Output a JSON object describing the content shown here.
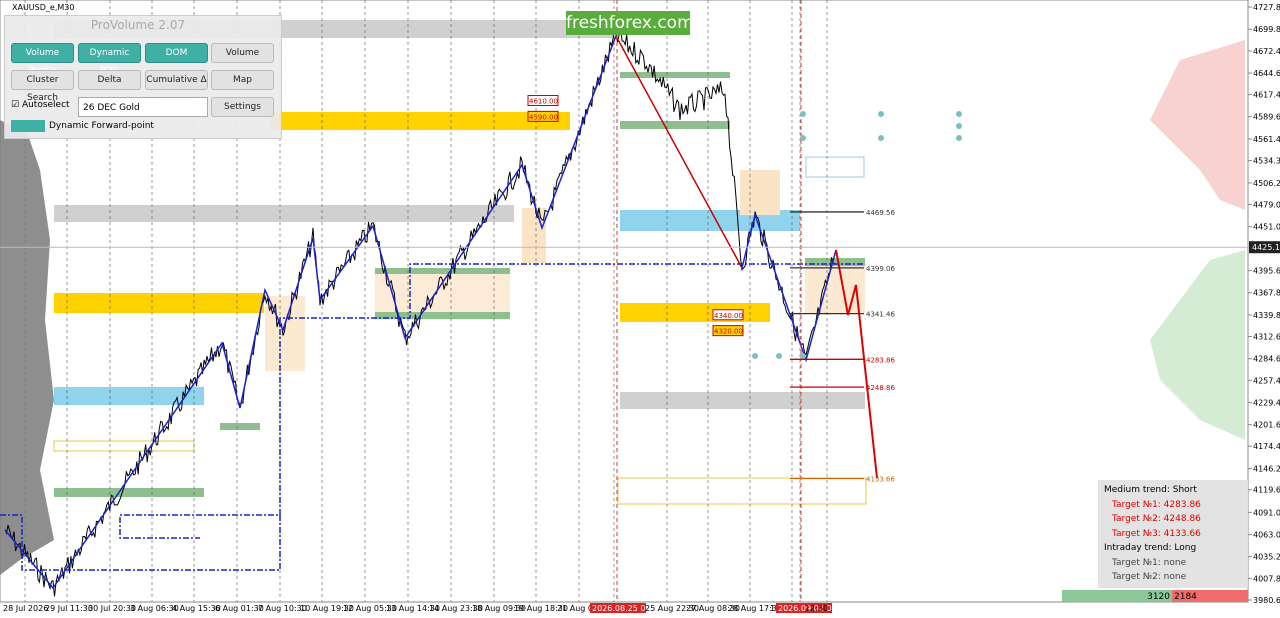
{
  "header": {
    "symbol": "XAUUSD_e,M30",
    "logo": "freshforex.com"
  },
  "panel": {
    "title": "ProVolume 2.07",
    "buttons": [
      "Volume Profile",
      "Dynamic POC",
      "DOM",
      "Volume",
      "Cluster Search",
      "Delta",
      "Cumulative Δ",
      "Map"
    ],
    "autoselect": "Autoselect",
    "instrument": "26 DEC Gold",
    "settings": "Settings",
    "forward_point": "Dynamic Forward-point"
  },
  "price_axis": {
    "ylim": [
      3980.6,
      4727.8
    ],
    "ticks": [
      {
        "value": 4727.8,
        "label": "4727.80"
      },
      {
        "value": 4699.8,
        "label": "4699.80"
      },
      {
        "value": 4672.45,
        "label": "4672.45"
      },
      {
        "value": 4644.6,
        "label": "4644.60"
      },
      {
        "value": 4617.45,
        "label": "4617.45"
      },
      {
        "value": 4589.6,
        "label": "4589.60"
      },
      {
        "value": 4561.45,
        "label": "4561.45"
      },
      {
        "value": 4534.3,
        "label": "4534.30"
      },
      {
        "value": 4506.2,
        "label": "4506.20"
      },
      {
        "value": 4479,
        "label": "4479.00"
      },
      {
        "value": 4451,
        "label": "4451.00"
      },
      {
        "value": 4395.6,
        "label": "4395.60"
      },
      {
        "value": 4367.8,
        "label": "4367.80"
      },
      {
        "value": 4339.8,
        "label": "4339.80"
      },
      {
        "value": 4312.6,
        "label": "4312.60"
      },
      {
        "value": 4284.6,
        "label": "4284.60"
      },
      {
        "value": 4257.4,
        "label": "4257.40"
      },
      {
        "value": 4229.4,
        "label": "4229.40"
      },
      {
        "value": 4201.6,
        "label": "4201.60"
      },
      {
        "value": 4174.4,
        "label": "4174.40"
      },
      {
        "value": 4146.2,
        "label": "4146.20"
      },
      {
        "value": 4119.6,
        "label": "4119.60"
      },
      {
        "value": 4091,
        "label": "4091.00"
      },
      {
        "value": 4063,
        "label": "4063.00"
      },
      {
        "value": 4035.2,
        "label": "4035.20"
      },
      {
        "value": 4007.8,
        "label": "4007.80"
      },
      {
        "value": 3980.6,
        "label": "3980.60"
      }
    ],
    "current_price": 4425.12
  },
  "time_axis": {
    "labels": [
      "28 Jul 2026",
      "29 Jul 11:30",
      "30 Jul 20:30",
      "3 Aug 06:30",
      "4 Aug 15:30",
      "6 Aug 01:30",
      "7 Aug 10:30",
      "10 Aug 19:30",
      "12 Aug 05:30",
      "13 Aug 14:30",
      "14 Aug 23:30",
      "18 Aug 09:30",
      "19 Aug 18:30",
      "21 Aug 04:30",
      "2026.08.25 03:30",
      "25 Aug 22:30",
      "27 Aug 08:30",
      "28 Aug 17:30",
      "1",
      "2026.09.02 04:30",
      "12:30"
    ]
  },
  "levels": [
    4469.56,
    4399.06,
    4341.46,
    4283.86,
    4248.86,
    4133.66
  ],
  "box_labels": [
    {
      "value": 4610,
      "label": "4610.00"
    },
    {
      "value": 4590,
      "label": "4590.00"
    },
    {
      "value": 4340,
      "label": "4340.00"
    },
    {
      "value": 4320,
      "label": "4320.00"
    }
  ],
  "trend_box": {
    "lines": [
      "Medium trend: Short",
      "Target №1: 4283.86",
      "Target №2: 4248.86",
      "Target №3: 4133.66",
      "Intraday trend: Long",
      "Target №1: none",
      "Target №2: none"
    ]
  },
  "footer": {
    "buy": "3120",
    "sell": "2184"
  }
}
